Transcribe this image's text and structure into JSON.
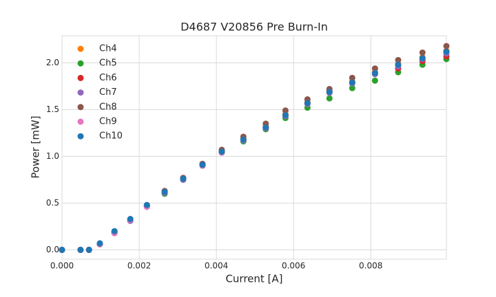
{
  "chart_data": {
    "type": "scatter",
    "title": "D4687 V20856 Pre Burn-In",
    "x_label": "Current [A]",
    "y_label": "Power [mW]",
    "x": [
      0,
      0.00048,
      0.0007,
      0.00098,
      0.00136,
      0.00177,
      0.0022,
      0.00266,
      0.00314,
      0.00364,
      0.00414,
      0.0047,
      0.00528,
      0.00579,
      0.00636,
      0.00693,
      0.00752,
      0.00811,
      0.00871,
      0.00934,
      0.00996
    ],
    "series": [
      {
        "name": "Ch4",
        "color": "#ff7f0e",
        "values": [
          0,
          0,
          0,
          0.06,
          0.19,
          0.32,
          0.47,
          0.62,
          0.77,
          0.91,
          1.05,
          1.19,
          1.32,
          1.45,
          1.58,
          1.7,
          1.8,
          1.9,
          1.99,
          2.06,
          2.13
        ]
      },
      {
        "name": "Ch5",
        "color": "#2ca02c",
        "values": [
          0,
          0,
          0,
          0.06,
          0.19,
          0.31,
          0.47,
          0.6,
          0.75,
          0.9,
          1.04,
          1.16,
          1.29,
          1.41,
          1.52,
          1.62,
          1.73,
          1.81,
          1.9,
          1.98,
          2.04
        ]
      },
      {
        "name": "Ch6",
        "color": "#d62728",
        "values": [
          0,
          0,
          0,
          0.06,
          0.18,
          0.32,
          0.47,
          0.62,
          0.76,
          0.91,
          1.05,
          1.18,
          1.31,
          1.44,
          1.57,
          1.69,
          1.79,
          1.88,
          1.94,
          2.02,
          2.07
        ]
      },
      {
        "name": "Ch7",
        "color": "#9467bd",
        "values": [
          0,
          0,
          0,
          0.06,
          0.18,
          0.31,
          0.46,
          0.61,
          0.75,
          0.9,
          1.04,
          1.17,
          1.3,
          1.43,
          1.56,
          1.68,
          1.78,
          1.88,
          1.96,
          2.04,
          2.1
        ]
      },
      {
        "name": "Ch8",
        "color": "#8c564b",
        "values": [
          0,
          0,
          0,
          0.06,
          0.18,
          0.32,
          0.47,
          0.63,
          0.77,
          0.92,
          1.07,
          1.21,
          1.35,
          1.49,
          1.61,
          1.72,
          1.84,
          1.94,
          2.03,
          2.11,
          2.18
        ]
      },
      {
        "name": "Ch9",
        "color": "#e377c2",
        "values": [
          0,
          0,
          0,
          0.06,
          0.18,
          0.32,
          0.46,
          0.62,
          0.76,
          0.9,
          1.04,
          1.18,
          1.31,
          1.44,
          1.57,
          1.69,
          1.79,
          1.89,
          1.98,
          2.05,
          2.12
        ]
      },
      {
        "name": "Ch10",
        "color": "#1f77b4",
        "values": [
          0,
          0,
          0,
          0.07,
          0.2,
          0.33,
          0.48,
          0.62,
          0.76,
          0.91,
          1.05,
          1.18,
          1.31,
          1.44,
          1.57,
          1.69,
          1.79,
          1.89,
          1.98,
          2.05,
          2.12
        ]
      }
    ],
    "xlim": [
      0,
      0.00996
    ],
    "ylim": [
      -0.1,
      2.29
    ],
    "xticks": [
      {
        "value": 0,
        "label": "0.000"
      },
      0.002,
      0.004,
      0.006,
      0.008
    ],
    "yticks": [
      {
        "value": 0,
        "label": "0.0"
      },
      0.5,
      {
        "value": 1,
        "label": "1.0"
      },
      1.5,
      {
        "value": 2,
        "label": "2.0"
      }
    ],
    "grid": true,
    "legend": "upper left"
  }
}
